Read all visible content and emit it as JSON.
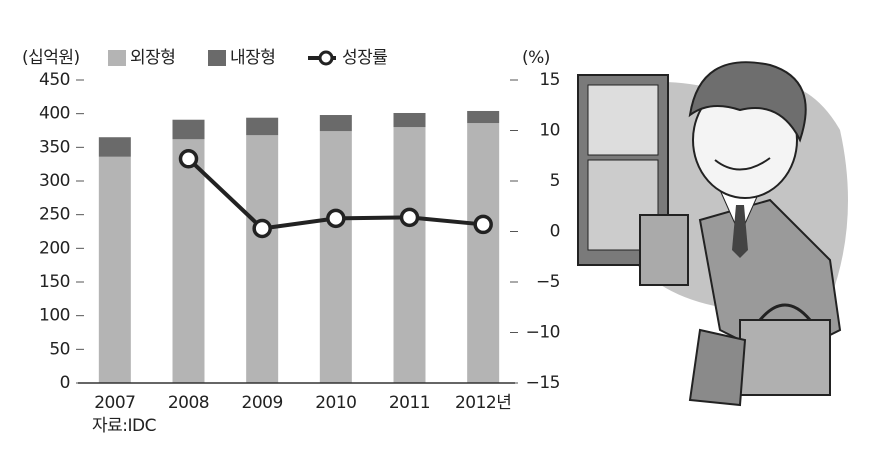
{
  "chart_data": {
    "type": "bar-line",
    "y_label": "(십억원)",
    "y2_label": "(%)",
    "source": "자료:IDC",
    "categories": [
      "2007",
      "2008",
      "2009",
      "2010",
      "2011",
      "2012년"
    ],
    "series": [
      {
        "name": "외장형",
        "color": "#b4b4b4",
        "values": [
          336,
          362,
          368,
          374,
          380,
          386
        ]
      },
      {
        "name": "내장형",
        "color": "#6a6a6a",
        "values": [
          29,
          29,
          26,
          24,
          21,
          18
        ]
      },
      {
        "name": "성장률",
        "color": "#222222",
        "axis": "y2",
        "values": [
          null,
          7.2,
          0.3,
          1.3,
          1.4,
          0.7
        ]
      }
    ],
    "ylim": [
      0,
      450
    ],
    "yticks": [
      0,
      50,
      100,
      150,
      200,
      250,
      300,
      350,
      400,
      450
    ],
    "y2lim": [
      -15,
      15
    ],
    "y2ticks": [
      {
        "value": -15,
        "label": "−15"
      },
      {
        "value": -10,
        "label": "−10"
      },
      {
        "value": -5,
        "label": "−5"
      },
      0,
      5,
      10,
      15
    ]
  }
}
